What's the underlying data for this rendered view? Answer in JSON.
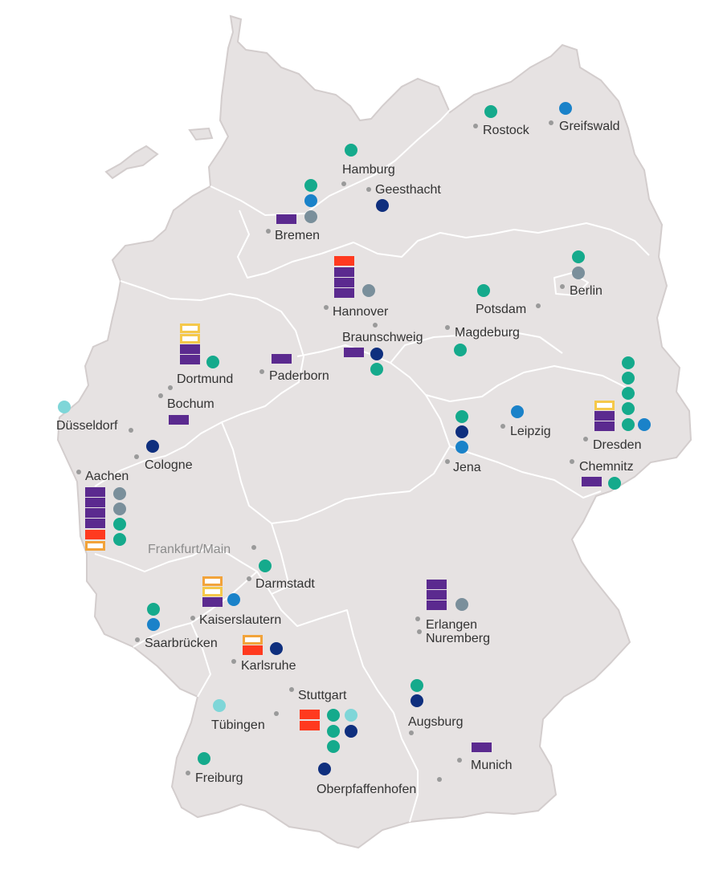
{
  "colors": {
    "purple": "#5b2a8f",
    "red": "#ff3a1f",
    "yellow": "#f5c84a",
    "orange": "#f2a33a",
    "teal": "#15aa8c",
    "navy": "#0f2f7e",
    "blue": "#1a82c9",
    "gray": "#7a8f9b",
    "light_teal": "#7fd6d8",
    "land": "#e6e2e2",
    "city_dot": "#9a9a9a"
  },
  "cities": [
    {
      "id": "rostock",
      "label": "Rostock"
    },
    {
      "id": "greifswald",
      "label": "Greifswald"
    },
    {
      "id": "hamburg",
      "label": "Hamburg"
    },
    {
      "id": "geesthacht",
      "label": "Geesthacht"
    },
    {
      "id": "bremen",
      "label": "Bremen"
    },
    {
      "id": "berlin",
      "label": "Berlin"
    },
    {
      "id": "potsdam",
      "label": "Potsdam"
    },
    {
      "id": "hannover",
      "label": "Hannover"
    },
    {
      "id": "braunschweig",
      "label": "Braunschweig"
    },
    {
      "id": "magdeburg",
      "label": "Magdeburg"
    },
    {
      "id": "dortmund",
      "label": "Dortmund"
    },
    {
      "id": "paderborn",
      "label": "Paderborn"
    },
    {
      "id": "bochum",
      "label": "Bochum"
    },
    {
      "id": "duesseldorf",
      "label": "Düsseldorf"
    },
    {
      "id": "cologne",
      "label": "Cologne"
    },
    {
      "id": "aachen",
      "label": "Aachen"
    },
    {
      "id": "leipzig",
      "label": "Leipzig"
    },
    {
      "id": "jena",
      "label": "Jena"
    },
    {
      "id": "dresden",
      "label": "Dresden"
    },
    {
      "id": "chemnitz",
      "label": "Chemnitz"
    },
    {
      "id": "frankfurt",
      "label": "Frankfurt/Main",
      "muted": true
    },
    {
      "id": "darmstadt",
      "label": "Darmstadt"
    },
    {
      "id": "kaiserslautern",
      "label": "Kaiserslautern"
    },
    {
      "id": "saarbruecken",
      "label": "Saarbrücken"
    },
    {
      "id": "karlsruhe",
      "label": "Karlsruhe"
    },
    {
      "id": "erlangen",
      "label": "Erlangen"
    },
    {
      "id": "nuremberg",
      "label": "Nuremberg"
    },
    {
      "id": "stuttgart",
      "label": "Stuttgart"
    },
    {
      "id": "tuebingen",
      "label": "Tübingen"
    },
    {
      "id": "augsburg",
      "label": "Augsburg"
    },
    {
      "id": "freiburg",
      "label": "Freiburg"
    },
    {
      "id": "munich",
      "label": "Munich"
    },
    {
      "id": "oberpfaffenhofen",
      "label": "Oberpfaffenhofen"
    }
  ]
}
